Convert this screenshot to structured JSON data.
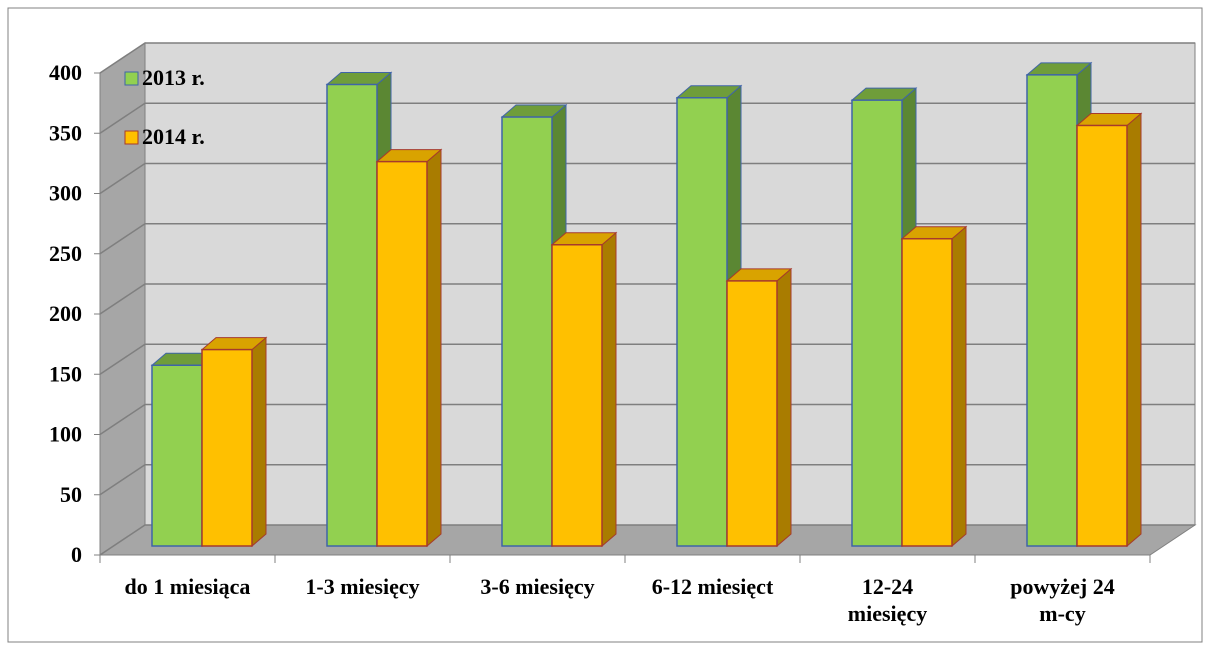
{
  "chart_data": {
    "type": "bar",
    "style": "3d-clustered-column",
    "categories": [
      [
        "do 1 miesiąca"
      ],
      [
        "1-3 miesięcy"
      ],
      [
        "3-6 miesięcy"
      ],
      [
        "6-12 miesięct"
      ],
      [
        "12-24",
        "miesięcy"
      ],
      [
        "powyżej 24",
        "m-cy"
      ]
    ],
    "series": [
      {
        "name": "2013 r.",
        "values": [
          150,
          383,
          356,
          372,
          370,
          391
        ]
      },
      {
        "name": "2014 r.",
        "values": [
          163,
          319,
          250,
          220,
          255,
          349
        ]
      }
    ],
    "ylim": [
      0,
      400
    ],
    "yticks": [
      0,
      50,
      100,
      150,
      200,
      250,
      300,
      350,
      400
    ],
    "title": "",
    "xlabel": "",
    "ylabel": "",
    "grid": true,
    "legend_placement": "top-left",
    "colors": {
      "series": [
        {
          "face": "#92d050",
          "side": "#5b8733",
          "top": "#6f9d3a",
          "edge": "#3f64a8"
        },
        {
          "face": "#ffc000",
          "side": "#a97c00",
          "top": "#d9a300",
          "edge": "#a63a2c"
        }
      ],
      "wall": "#d9d9d9",
      "side_wall": "#a6a6a6",
      "floor": "#a6a6a6",
      "gridline": "#7f7f7f",
      "axis": "#808080"
    }
  }
}
